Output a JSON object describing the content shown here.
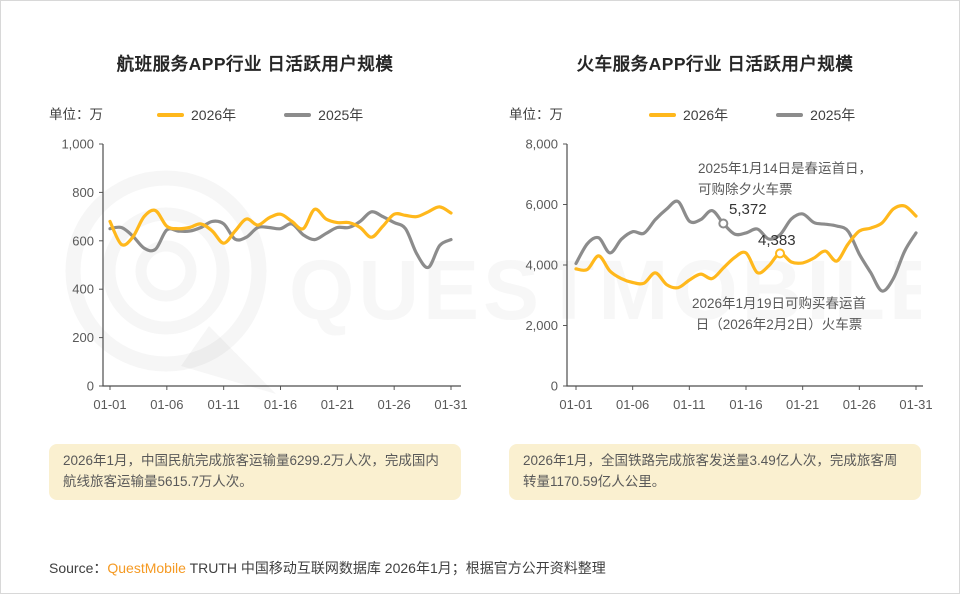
{
  "source": {
    "prefix": "Source：",
    "brand": "QuestMobile",
    "suffix": " TRUTH 中国移动互联网数据库 2026年1月；根据官方公开资料整理"
  },
  "watermark": {
    "text": "QUESTMOBILE"
  },
  "colors": {
    "accent_yellow": "#FFB81C",
    "line_gray": "#8C8C8C",
    "note_bg": "#FAF0D0",
    "brand_orange": "#F59A23"
  },
  "chart_data": [
    {
      "type": "line",
      "title": "航班服务APP行业 日活跃用户规模",
      "unit_label": "单位：万",
      "ylim": [
        0,
        1000
      ],
      "grid": false,
      "legend_position": "top",
      "x_days": 31,
      "x_ticks": [
        {
          "label": "01-01",
          "day": 1
        },
        {
          "label": "01-06",
          "day": 6
        },
        {
          "label": "01-11",
          "day": 11
        },
        {
          "label": "01-16",
          "day": 16
        },
        {
          "label": "01-21",
          "day": 21
        },
        {
          "label": "01-26",
          "day": 26
        },
        {
          "label": "01-31",
          "day": 31
        }
      ],
      "y_ticks": [
        {
          "label": "1,000",
          "value": 1000
        },
        {
          "label": "800",
          "value": 800
        },
        {
          "label": "600",
          "value": 600
        },
        {
          "label": "400",
          "value": 400
        },
        {
          "label": "200",
          "value": 200
        },
        {
          "label": "0",
          "value": 0
        }
      ],
      "series": [
        {
          "name": "2026年",
          "color": "#FFB81C",
          "values": [
            680,
            585,
            615,
            700,
            725,
            660,
            650,
            655,
            670,
            640,
            590,
            640,
            690,
            665,
            695,
            710,
            680,
            650,
            730,
            690,
            675,
            675,
            655,
            615,
            660,
            710,
            705,
            700,
            720,
            740,
            715
          ]
        },
        {
          "name": "2025年",
          "color": "#8C8C8C",
          "values": [
            650,
            655,
            620,
            570,
            565,
            645,
            640,
            640,
            655,
            680,
            670,
            607,
            615,
            655,
            655,
            650,
            670,
            625,
            605,
            630,
            655,
            655,
            680,
            720,
            700,
            675,
            650,
            545,
            490,
            580,
            605
          ]
        }
      ],
      "annotations": [],
      "note": "2026年1月，中国民航完成旅客运输量6299.2万人次，完成国内航线旅客运输量5615.7万人次。"
    },
    {
      "type": "line",
      "title": "火车服务APP行业 日活跃用户规模",
      "unit_label": "单位：万",
      "ylim": [
        0,
        8000
      ],
      "grid": false,
      "legend_position": "top",
      "x_days": 31,
      "x_ticks": [
        {
          "label": "01-01",
          "day": 1
        },
        {
          "label": "01-06",
          "day": 6
        },
        {
          "label": "01-11",
          "day": 11
        },
        {
          "label": "01-16",
          "day": 16
        },
        {
          "label": "01-21",
          "day": 21
        },
        {
          "label": "01-26",
          "day": 26
        },
        {
          "label": "01-31",
          "day": 31
        }
      ],
      "y_ticks": [
        {
          "label": "8,000",
          "value": 8000
        },
        {
          "label": "6,000",
          "value": 6000
        },
        {
          "label": "4,000",
          "value": 4000
        },
        {
          "label": "2,000",
          "value": 2000
        },
        {
          "label": "0",
          "value": 0
        }
      ],
      "series": [
        {
          "name": "2026年",
          "color": "#FFB81C",
          "values": [
            3870,
            3850,
            4300,
            3800,
            3550,
            3420,
            3400,
            3740,
            3350,
            3250,
            3500,
            3700,
            3550,
            3900,
            4250,
            4400,
            3750,
            3970,
            4383,
            4100,
            4070,
            4230,
            4460,
            4130,
            4690,
            5120,
            5220,
            5390,
            5850,
            5950,
            5620
          ]
        },
        {
          "name": "2025年",
          "color": "#8C8C8C",
          "values": [
            4050,
            4700,
            4900,
            4400,
            4850,
            5100,
            5050,
            5500,
            5850,
            6100,
            5450,
            5500,
            5800,
            5372,
            5020,
            5060,
            5190,
            4860,
            5000,
            5520,
            5690,
            5400,
            5350,
            5290,
            5120,
            4360,
            3750,
            3140,
            3550,
            4460,
            5060
          ]
        }
      ],
      "annotations": [
        {
          "series_index": 1,
          "day": 14,
          "value": 5372,
          "value_label": "5,372",
          "lines": [
            "2025年1月14日是春运首日，",
            "可购除夕火车票"
          ]
        },
        {
          "series_index": 0,
          "day": 19,
          "value": 4383,
          "value_label": "4,383",
          "lines": [
            "2026年1月19日可购买春运首",
            "日（2026年2月2日）火车票"
          ]
        }
      ],
      "note": "2026年1月，全国铁路完成旅客发送量3.49亿人次，完成旅客周转量1170.59亿人公里。"
    }
  ]
}
